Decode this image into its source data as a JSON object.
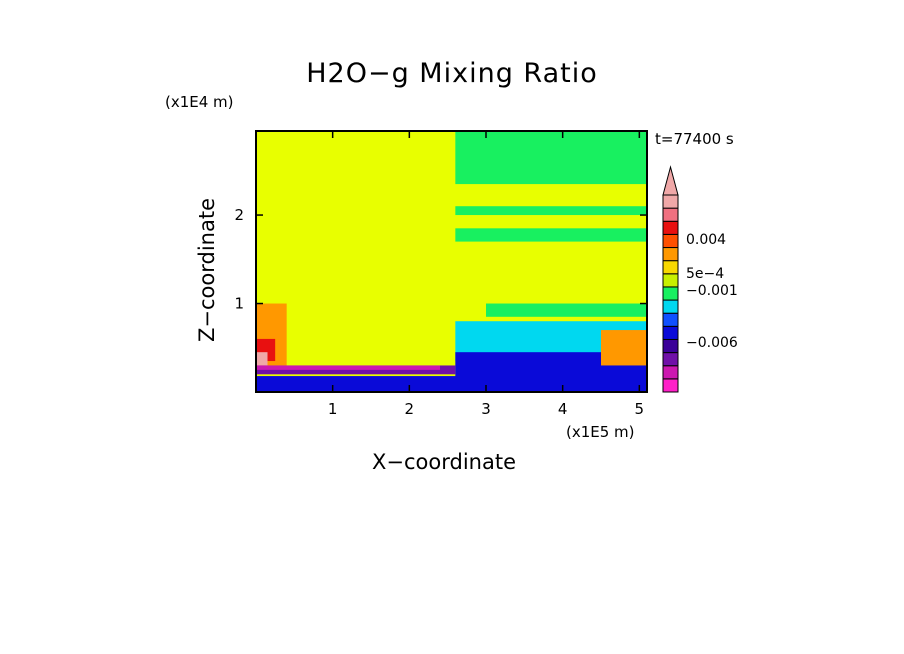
{
  "chart_data": {
    "type": "heatmap",
    "title": "H2O−g Mixing Ratio",
    "xlabel": "X−coordinate",
    "ylabel": "Z−coordinate",
    "x_unit": "(x1E5 m)",
    "y_unit": "(x1E4 m)",
    "time_label": "t=77400 s",
    "x_range": [
      0,
      5.1
    ],
    "y_range": [
      0,
      2.95
    ],
    "x_ticks": [
      {
        "v": 1,
        "label": "1"
      },
      {
        "v": 2,
        "label": "2"
      },
      {
        "v": 3,
        "label": "3"
      },
      {
        "v": 4,
        "label": "4"
      },
      {
        "v": 5,
        "label": "5"
      }
    ],
    "y_ticks": [
      {
        "v": 1,
        "label": "1"
      },
      {
        "v": 2,
        "label": "2"
      }
    ],
    "colorbar": {
      "colors": [
        "#ff20c8",
        "#cc18b0",
        "#7010a8",
        "#3a0098",
        "#0a0ad8",
        "#1050ff",
        "#00d8f0",
        "#18f060",
        "#c8f000",
        "#f8d800",
        "#ff9800",
        "#ff5000",
        "#e81010",
        "#f07080",
        "#f0a8a8"
      ],
      "labels": [
        {
          "level": 0.004,
          "label": "0.004"
        },
        {
          "level": 0.0005,
          "label": "5e−4"
        },
        {
          "level": -0.001,
          "label": "−0.001"
        },
        {
          "level": -0.006,
          "label": "−0.006"
        }
      ]
    },
    "regions": [
      {
        "name": "background",
        "color": "#e8ff00",
        "x": [
          0,
          5.1
        ],
        "y": [
          0,
          2.95
        ]
      },
      {
        "name": "upper-right-green",
        "color": "#18f060",
        "x": [
          2.6,
          5.1
        ],
        "y": [
          2.35,
          2.95
        ]
      },
      {
        "name": "right-band-1",
        "color": "#18f060",
        "x": [
          2.6,
          5.1
        ],
        "y": [
          2.0,
          2.1
        ]
      },
      {
        "name": "right-band-2",
        "color": "#18f060",
        "x": [
          2.6,
          5.1
        ],
        "y": [
          1.7,
          1.85
        ]
      },
      {
        "name": "right-mid-green",
        "color": "#18f060",
        "x": [
          3.0,
          5.1
        ],
        "y": [
          0.85,
          1.0
        ]
      },
      {
        "name": "right-cyan",
        "color": "#00d8f0",
        "x": [
          2.6,
          5.1
        ],
        "y": [
          0.35,
          0.8
        ]
      },
      {
        "name": "right-blue",
        "color": "#0a0ad8",
        "x": [
          2.6,
          5.1
        ],
        "y": [
          0.05,
          0.45
        ]
      },
      {
        "name": "left-orange",
        "color": "#ff9800",
        "x": [
          0,
          0.4
        ],
        "y": [
          0.3,
          1.0
        ]
      },
      {
        "name": "left-red",
        "color": "#e81010",
        "x": [
          0,
          0.25
        ],
        "y": [
          0.35,
          0.6
        ]
      },
      {
        "name": "left-pink",
        "color": "#f0a8a8",
        "x": [
          0,
          0.15
        ],
        "y": [
          0.3,
          0.45
        ]
      },
      {
        "name": "surface-purple",
        "color": "#7010a8",
        "x": [
          0,
          2.6
        ],
        "y": [
          0.2,
          0.3
        ]
      },
      {
        "name": "surface-magenta",
        "color": "#cc18b0",
        "x": [
          0,
          2.4
        ],
        "y": [
          0.25,
          0.3
        ]
      },
      {
        "name": "surface-blue",
        "color": "#0a0ad8",
        "x": [
          0,
          5.1
        ],
        "y": [
          0,
          0.18
        ]
      },
      {
        "name": "right-orange-patch",
        "color": "#ff9800",
        "x": [
          4.5,
          5.1
        ],
        "y": [
          0.3,
          0.7
        ]
      }
    ]
  }
}
